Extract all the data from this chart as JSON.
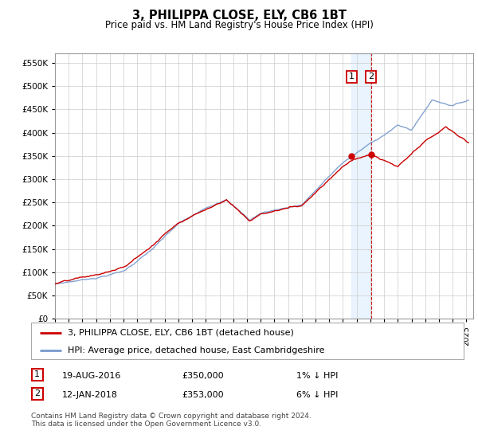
{
  "title": "3, PHILIPPA CLOSE, ELY, CB6 1BT",
  "subtitle": "Price paid vs. HM Land Registry's House Price Index (HPI)",
  "ylabel_values": [
    0,
    50000,
    100000,
    150000,
    200000,
    250000,
    300000,
    350000,
    400000,
    450000,
    500000,
    550000
  ],
  "ylim": [
    0,
    570000
  ],
  "xlim_start": 1995.0,
  "xlim_end": 2025.5,
  "sale1_date": 2016.63,
  "sale1_price": 350000,
  "sale1_label": "1",
  "sale2_date": 2018.04,
  "sale2_price": 353000,
  "sale2_label": "2",
  "legend_line1": "3, PHILIPPA CLOSE, ELY, CB6 1BT (detached house)",
  "legend_line2": "HPI: Average price, detached house, East Cambridgeshire",
  "table_row1": [
    "1",
    "19-AUG-2016",
    "£350,000",
    "1% ↓ HPI"
  ],
  "table_row2": [
    "2",
    "12-JAN-2018",
    "£353,000",
    "6% ↓ HPI"
  ],
  "footer": "Contains HM Land Registry data © Crown copyright and database right 2024.\nThis data is licensed under the Open Government Licence v3.0.",
  "hpi_color": "#7799cc",
  "price_color": "#cc0000",
  "sale_marker_color": "#cc0000",
  "grid_color": "#cccccc",
  "shade_color": "#ddeeff",
  "bg_color": "#f5f5f5"
}
